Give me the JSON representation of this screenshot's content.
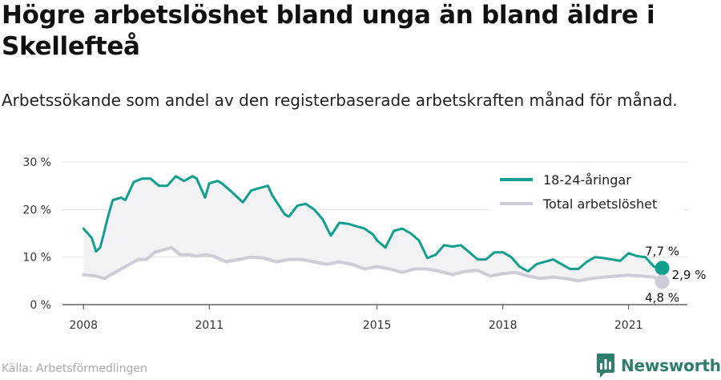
{
  "title": "Högre arbetslöshet bland unga än bland äldre i Skellefteå",
  "subtitle": "Arbetssökande som andel av den registerbaserade arbetskraften månad för månad.",
  "source": "Källa: Arbetsförmedlingen",
  "brand": "Newsworthy",
  "brand_icon": "newsworthy-logo-icon",
  "chart_data": {
    "type": "line",
    "ylim": [
      0,
      30
    ],
    "y_ticks": [
      0,
      10,
      20,
      30
    ],
    "y_tick_labels": [
      "0 %",
      "10 %",
      "20 %",
      "30 %"
    ],
    "x_ticks": [
      2008,
      2011,
      2015,
      2018,
      2021
    ],
    "x_tick_labels": [
      "2008",
      "2011",
      "2015",
      "2018",
      "2021"
    ],
    "xlim": [
      2007.5,
      2022.4
    ],
    "grid": true,
    "legend_position": "top-right",
    "difference_label": "2,9 %",
    "series": [
      {
        "name": "18-24-åringar",
        "color": "#12a08e",
        "end_label": "7,7 %",
        "x": [
          2008.0,
          2008.2,
          2008.3,
          2008.4,
          2008.6,
          2008.7,
          2008.9,
          2009.0,
          2009.2,
          2009.4,
          2009.6,
          2009.8,
          2010.0,
          2010.2,
          2010.4,
          2010.6,
          2010.7,
          2010.9,
          2011.0,
          2011.2,
          2011.3,
          2011.5,
          2011.8,
          2012.0,
          2012.2,
          2012.4,
          2012.5,
          2012.8,
          2012.9,
          2013.1,
          2013.3,
          2013.5,
          2013.7,
          2013.9,
          2014.1,
          2014.3,
          2014.5,
          2014.7,
          2014.9,
          2015.0,
          2015.2,
          2015.4,
          2015.6,
          2015.8,
          2016.0,
          2016.2,
          2016.4,
          2016.6,
          2016.8,
          2017.0,
          2017.2,
          2017.4,
          2017.6,
          2017.8,
          2018.0,
          2018.2,
          2018.4,
          2018.6,
          2018.8,
          2019.0,
          2019.2,
          2019.4,
          2019.6,
          2019.8,
          2020.0,
          2020.2,
          2020.4,
          2020.6,
          2020.8,
          2021.0,
          2021.2,
          2021.4,
          2021.6,
          2021.8
        ],
        "y": [
          16.0,
          14.0,
          11.2,
          12.0,
          19.0,
          22.0,
          22.5,
          22.0,
          25.8,
          26.5,
          26.5,
          25.0,
          25.0,
          27.0,
          26.0,
          27.0,
          26.5,
          22.5,
          25.5,
          26.0,
          25.5,
          24.0,
          21.5,
          24.0,
          24.5,
          25.0,
          23.0,
          19.0,
          18.5,
          20.8,
          21.2,
          20.0,
          18.0,
          14.5,
          17.2,
          17.0,
          16.5,
          16.0,
          14.8,
          13.5,
          12.0,
          15.5,
          16.0,
          15.0,
          13.5,
          9.8,
          10.5,
          12.5,
          12.2,
          12.5,
          11.0,
          9.5,
          9.5,
          11.0,
          11.0,
          10.0,
          8.0,
          7.0,
          8.5,
          9.0,
          9.5,
          8.5,
          7.5,
          7.5,
          9.0,
          10.0,
          9.8,
          9.5,
          9.2,
          10.8,
          10.2,
          10.0,
          8.0,
          7.7
        ]
      },
      {
        "name": "Total arbetslöshet",
        "color": "#cdcdd8",
        "end_label": "4,8 %",
        "x": [
          2008.0,
          2008.3,
          2008.5,
          2008.7,
          2008.9,
          2009.1,
          2009.3,
          2009.5,
          2009.7,
          2009.9,
          2010.1,
          2010.3,
          2010.5,
          2010.7,
          2010.9,
          2011.1,
          2011.4,
          2011.7,
          2012.0,
          2012.3,
          2012.6,
          2012.9,
          2013.2,
          2013.5,
          2013.8,
          2014.1,
          2014.4,
          2014.7,
          2015.0,
          2015.3,
          2015.6,
          2015.9,
          2016.2,
          2016.5,
          2016.8,
          2017.1,
          2017.4,
          2017.7,
          2018.0,
          2018.3,
          2018.6,
          2018.9,
          2019.2,
          2019.5,
          2019.8,
          2020.1,
          2020.4,
          2020.7,
          2021.0,
          2021.3,
          2021.6,
          2021.8
        ],
        "y": [
          6.3,
          6.0,
          5.5,
          6.5,
          7.5,
          8.5,
          9.5,
          9.5,
          11.0,
          11.5,
          12.0,
          10.5,
          10.5,
          10.2,
          10.5,
          10.2,
          9.0,
          9.5,
          10.0,
          9.8,
          9.0,
          9.5,
          9.5,
          9.0,
          8.5,
          9.0,
          8.5,
          7.5,
          8.0,
          7.5,
          6.8,
          7.5,
          7.5,
          7.0,
          6.3,
          7.0,
          7.2,
          6.0,
          6.5,
          6.8,
          6.0,
          5.5,
          5.8,
          5.5,
          5.0,
          5.5,
          5.8,
          6.0,
          6.2,
          6.0,
          5.8,
          4.8
        ]
      }
    ]
  }
}
